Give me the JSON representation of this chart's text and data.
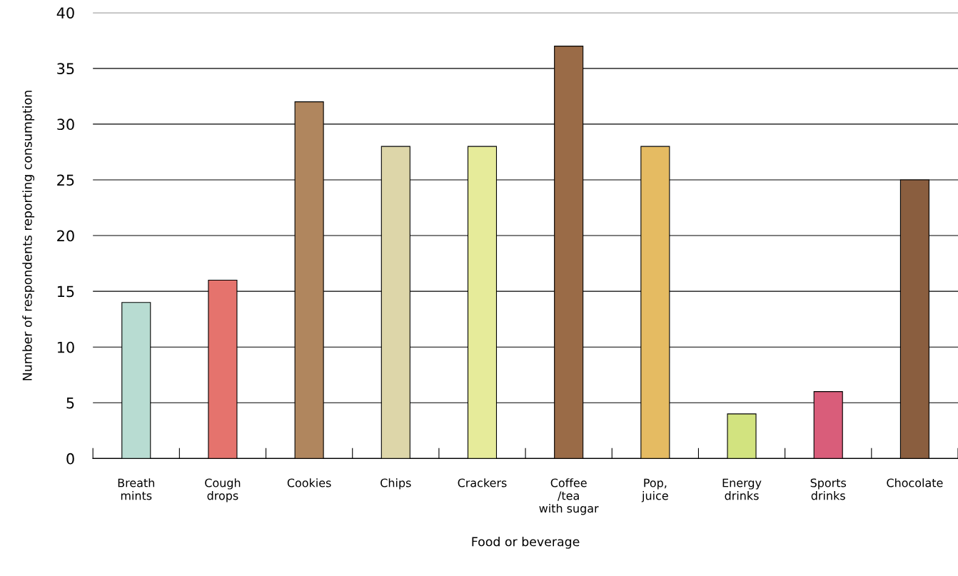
{
  "chart_data": {
    "type": "bar",
    "xlabel": "Food or beverage",
    "ylabel": "Number of respondents reporting consumption",
    "categories": [
      "Breath\nmints",
      "Cough\ndrops",
      "Cookies",
      "Chips",
      "Crackers",
      "Coffee\n/tea\nwith sugar",
      "Pop,\njuice",
      "Energy\ndrinks",
      "Sports\ndrinks",
      "Chocolate"
    ],
    "values": [
      14,
      16,
      32,
      28,
      28,
      37,
      28,
      4,
      6,
      25
    ],
    "colors": [
      "#b8dcd2",
      "#e5736d",
      "#b0865e",
      "#ddd6a9",
      "#e6eb9a",
      "#9a6b47",
      "#e5bb62",
      "#d2e37f",
      "#d95d7a",
      "#8a5e3f"
    ],
    "ylim": [
      0,
      40
    ],
    "yticks": [
      0,
      5,
      10,
      15,
      20,
      25,
      30,
      35,
      40
    ],
    "grid": "y",
    "legend": false
  }
}
